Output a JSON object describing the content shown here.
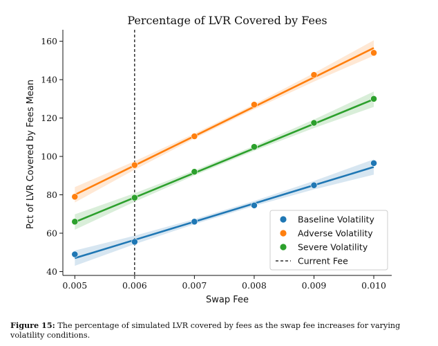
{
  "chart_data": {
    "type": "scatter",
    "title": "Percentage of LVR Covered by Fees",
    "xlabel": "Swap Fee",
    "ylabel": "Pct of LVR Covered by Fees Mean",
    "xlim": [
      0.0048,
      0.0103
    ],
    "ylim": [
      38,
      166
    ],
    "x_ticks": [
      "0.005",
      "0.006",
      "0.007",
      "0.008",
      "0.009",
      "0.010"
    ],
    "y_ticks": [
      "40",
      "60",
      "80",
      "100",
      "120",
      "140",
      "160"
    ],
    "x": [
      0.005,
      0.006,
      0.007,
      0.008,
      0.009,
      0.01
    ],
    "series": [
      {
        "name": "Baseline Volatility",
        "color": "#1f77b4",
        "values": [
          49.0,
          55.5,
          66.0,
          74.5,
          85.0,
          96.5
        ],
        "fit": [
          47.0,
          56.5,
          66.0,
          75.5,
          85.0,
          94.5
        ]
      },
      {
        "name": "Adverse Volatility",
        "color": "#ff7f0e",
        "values": [
          79.0,
          95.5,
          110.5,
          127.0,
          142.5,
          154.0
        ],
        "fit": [
          80.0,
          95.3,
          110.6,
          125.9,
          141.2,
          156.5
        ]
      },
      {
        "name": "Severe Volatility",
        "color": "#2ca02c",
        "values": [
          66.0,
          78.5,
          92.0,
          105.0,
          117.5,
          130.0
        ],
        "fit": [
          65.8,
          78.6,
          91.4,
          104.2,
          117.0,
          129.8
        ]
      }
    ],
    "reference_line": {
      "name": "Current Fee",
      "x": 0.006,
      "style": "dashed",
      "color": "#000000"
    },
    "legend_position": "lower-right",
    "grid": false
  },
  "caption": {
    "label": "Figure 15:",
    "text": " The percentage of simulated LVR covered by fees as the swap fee increases for varying volatility conditions."
  }
}
